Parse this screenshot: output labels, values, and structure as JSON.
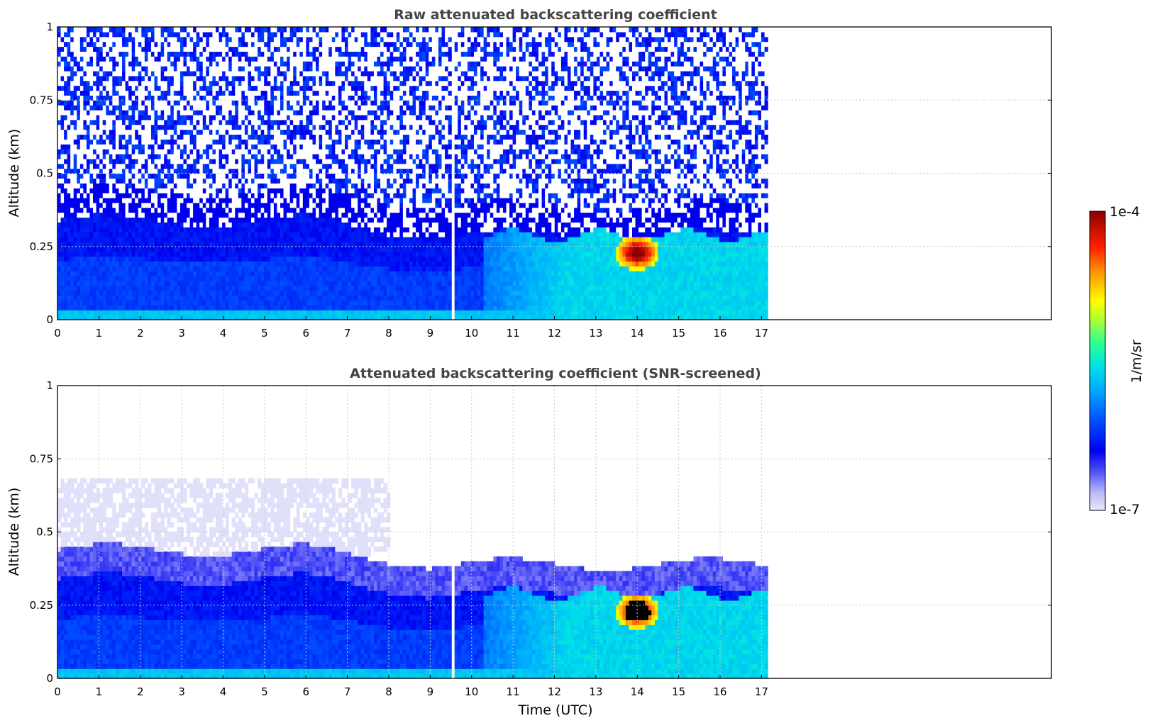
{
  "chart_data": [
    {
      "type": "heatmap",
      "title": "Raw attenuated backscattering coefficient",
      "xlabel": "",
      "ylabel": "Altitude (km)",
      "xlim": [
        0,
        24
      ],
      "ylim": [
        0,
        1
      ],
      "x_tick_labels": [
        "0",
        "1",
        "2",
        "3",
        "4",
        "5",
        "6",
        "7",
        "8",
        "9",
        "10",
        "11",
        "12",
        "13",
        "14",
        "15",
        "16",
        "17"
      ],
      "y_tick_labels": [
        "0",
        "0.25",
        "0.5",
        "0.75",
        "1"
      ],
      "data_extent_time": [
        0,
        17.15
      ],
      "grid": true,
      "features": [
        {
          "description": "dense low-level layer",
          "time": [
            0,
            17.15
          ],
          "altitude_top": 0.33
        },
        {
          "description": "data gap",
          "time": 9.57
        },
        {
          "description": "high backscatter region (max near 1e-4)",
          "time": [
            13.5,
            14.6
          ],
          "altitude": [
            0.18,
            0.3
          ]
        }
      ]
    },
    {
      "type": "heatmap",
      "title": "Attenuated backscattering coefficient (SNR-screened)",
      "xlabel": "Time (UTC)",
      "ylabel": "Altitude (km)",
      "xlim": [
        0,
        24
      ],
      "ylim": [
        0,
        1
      ],
      "x_tick_labels": [
        "0",
        "1",
        "2",
        "3",
        "4",
        "5",
        "6",
        "7",
        "8",
        "9",
        "10",
        "11",
        "12",
        "13",
        "14",
        "15",
        "16",
        "17"
      ],
      "y_tick_labels": [
        "0",
        "0.25",
        "0.5",
        "0.75",
        "1"
      ],
      "data_extent_time": [
        0,
        17.15
      ],
      "grid": true,
      "features": [
        {
          "description": "screened aerosol layer top",
          "time": [
            0,
            8
          ],
          "altitude_top": 0.65
        },
        {
          "description": "data gap",
          "time": 9.57
        },
        {
          "description": "saturated region",
          "time": [
            13.3,
            14.6
          ],
          "altitude": [
            0.17,
            0.3
          ]
        }
      ]
    }
  ],
  "colorbar": {
    "label": "1/m/sr",
    "max_label": "1e-4",
    "min_label": "1e-7",
    "scale": "log",
    "range": [
      1e-07,
      0.0001
    ],
    "colormap": [
      "#e8e8fb",
      "#6e6ef8",
      "#0000f5",
      "#0050ff",
      "#00bfff",
      "#00ffd0",
      "#7fff40",
      "#ffff00",
      "#ff8000",
      "#ff0000",
      "#8a0000"
    ]
  }
}
